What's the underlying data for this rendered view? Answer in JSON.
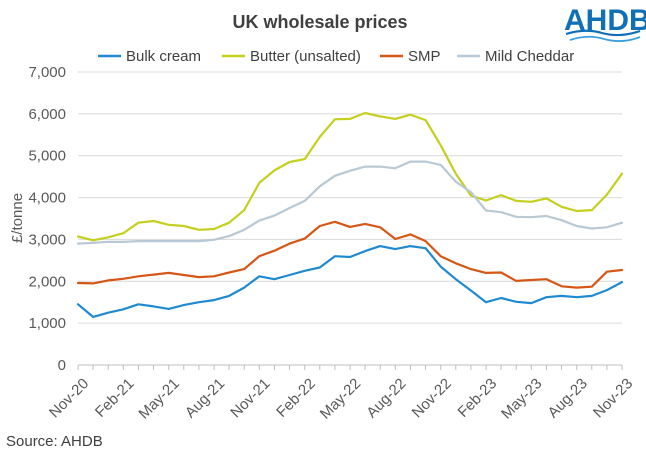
{
  "logo": {
    "text": "AHDB"
  },
  "source": "Source: AHDB",
  "chart_data": {
    "type": "line",
    "title": "UK wholesale prices",
    "xlabel": "",
    "ylabel": "£/tonne",
    "ylim": [
      0,
      7000
    ],
    "yticks": [
      0,
      1000,
      2000,
      3000,
      4000,
      5000,
      6000,
      7000
    ],
    "ytick_labels": [
      "0",
      "1,000",
      "2,000",
      "3,000",
      "4,000",
      "5,000",
      "6,000",
      "7,000"
    ],
    "grid": true,
    "legend_position": "top",
    "x": [
      "Nov-20",
      "Dec-20",
      "Jan-21",
      "Feb-21",
      "Mar-21",
      "Apr-21",
      "May-21",
      "Jun-21",
      "Jul-21",
      "Aug-21",
      "Sep-21",
      "Oct-21",
      "Nov-21",
      "Dec-21",
      "Jan-22",
      "Feb-22",
      "Mar-22",
      "Apr-22",
      "May-22",
      "Jun-22",
      "Jul-22",
      "Aug-22",
      "Sep-22",
      "Oct-22",
      "Nov-22",
      "Dec-22",
      "Jan-23",
      "Feb-23",
      "Mar-23",
      "Apr-23",
      "May-23",
      "Jun-23",
      "Jul-23",
      "Aug-23",
      "Sep-23",
      "Oct-23",
      "Nov-23"
    ],
    "xtick_labels": [
      "Nov-20",
      "Feb-21",
      "May-21",
      "Aug-21",
      "Nov-21",
      "Feb-22",
      "May-22",
      "Aug-22",
      "Nov-22",
      "Feb-23",
      "May-23",
      "Aug-23",
      "Nov-23"
    ],
    "xtick_indices": [
      0,
      3,
      6,
      9,
      12,
      15,
      18,
      21,
      24,
      27,
      30,
      33,
      36
    ],
    "series": [
      {
        "name": "Bulk cream",
        "color": "#1f8ad0",
        "values": [
          1450,
          1150,
          1250,
          1330,
          1450,
          1400,
          1340,
          1430,
          1500,
          1550,
          1650,
          1850,
          2120,
          2050,
          2150,
          2250,
          2330,
          2600,
          2580,
          2720,
          2840,
          2770,
          2840,
          2790,
          2350,
          2050,
          1780,
          1500,
          1600,
          1510,
          1480,
          1620,
          1650,
          1620,
          1650,
          1790,
          1980
        ]
      },
      {
        "name": "Butter (unsalted)",
        "color": "#c4cf1e",
        "values": [
          3070,
          2980,
          3050,
          3150,
          3400,
          3440,
          3350,
          3320,
          3230,
          3250,
          3400,
          3700,
          4350,
          4650,
          4850,
          4920,
          5450,
          5870,
          5880,
          6020,
          5940,
          5880,
          5980,
          5850,
          5250,
          4570,
          4050,
          3930,
          4060,
          3920,
          3900,
          3980,
          3780,
          3680,
          3700,
          4070,
          4570
        ]
      },
      {
        "name": "SMP",
        "color": "#d65616",
        "values": [
          1960,
          1950,
          2020,
          2060,
          2120,
          2160,
          2200,
          2150,
          2100,
          2120,
          2210,
          2290,
          2600,
          2730,
          2900,
          3020,
          3320,
          3420,
          3300,
          3370,
          3290,
          3010,
          3120,
          2960,
          2600,
          2430,
          2290,
          2200,
          2210,
          2010,
          2030,
          2050,
          1880,
          1850,
          1870,
          2230,
          2270
        ]
      },
      {
        "name": "Mild Cheddar",
        "color": "#b8c8d4",
        "values": [
          2900,
          2920,
          2940,
          2940,
          2960,
          2960,
          2960,
          2960,
          2960,
          2990,
          3080,
          3230,
          3450,
          3570,
          3750,
          3920,
          4270,
          4520,
          4640,
          4740,
          4740,
          4700,
          4860,
          4860,
          4780,
          4380,
          4130,
          3690,
          3650,
          3540,
          3530,
          3560,
          3460,
          3320,
          3260,
          3290,
          3400
        ]
      }
    ]
  }
}
